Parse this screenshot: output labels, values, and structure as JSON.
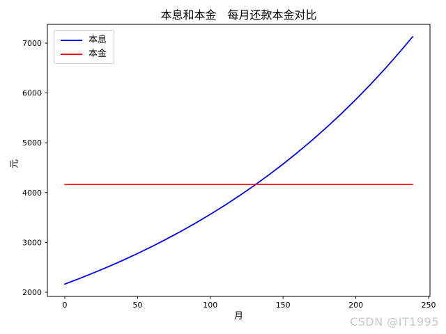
{
  "figure": {
    "background": "#ffffff"
  },
  "watermark": {
    "text": "CSDN @IT1995",
    "color": "#c3c9ce"
  },
  "chart_data": {
    "type": "line",
    "title": "本息和本金　每月还款本金对比",
    "xlabel": "月",
    "ylabel": "元",
    "x": [
      0,
      10,
      20,
      30,
      40,
      50,
      60,
      70,
      80,
      90,
      100,
      110,
      120,
      130,
      140,
      150,
      160,
      170,
      180,
      190,
      200,
      210,
      220,
      230,
      239
    ],
    "series": [
      {
        "name": "本息",
        "color": "#0000ff",
        "values": [
          2164.3,
          2275.0,
          2391.4,
          2513.6,
          2642.2,
          2777.3,
          2919.3,
          3068.6,
          3225.6,
          3390.5,
          3563.9,
          3746.2,
          3937.8,
          4139.1,
          4350.8,
          4573.3,
          4807.2,
          5053.0,
          5311.4,
          5583.1,
          5868.6,
          6168.7,
          6484.2,
          6815.8,
          7128.6
        ]
      },
      {
        "name": "本金",
        "color": "#ff0000",
        "values": [
          4166.7,
          4166.7,
          4166.7,
          4166.7,
          4166.7,
          4166.7,
          4166.7,
          4166.7,
          4166.7,
          4166.7,
          4166.7,
          4166.7,
          4166.7,
          4166.7,
          4166.7,
          4166.7,
          4166.7,
          4166.7,
          4166.7,
          4166.7,
          4166.7,
          4166.7,
          4166.7,
          4166.7,
          4166.7
        ]
      }
    ],
    "xlim": [
      -11.95,
      250.95
    ],
    "ylim": [
      1916.1,
      7376.8
    ],
    "xticks": [
      0,
      50,
      100,
      150,
      200,
      250
    ],
    "yticks": [
      2000,
      3000,
      4000,
      5000,
      6000,
      7000
    ],
    "legend_position": "upper left",
    "grid": false,
    "axis_color": "#000000",
    "line_width": 1.8
  }
}
